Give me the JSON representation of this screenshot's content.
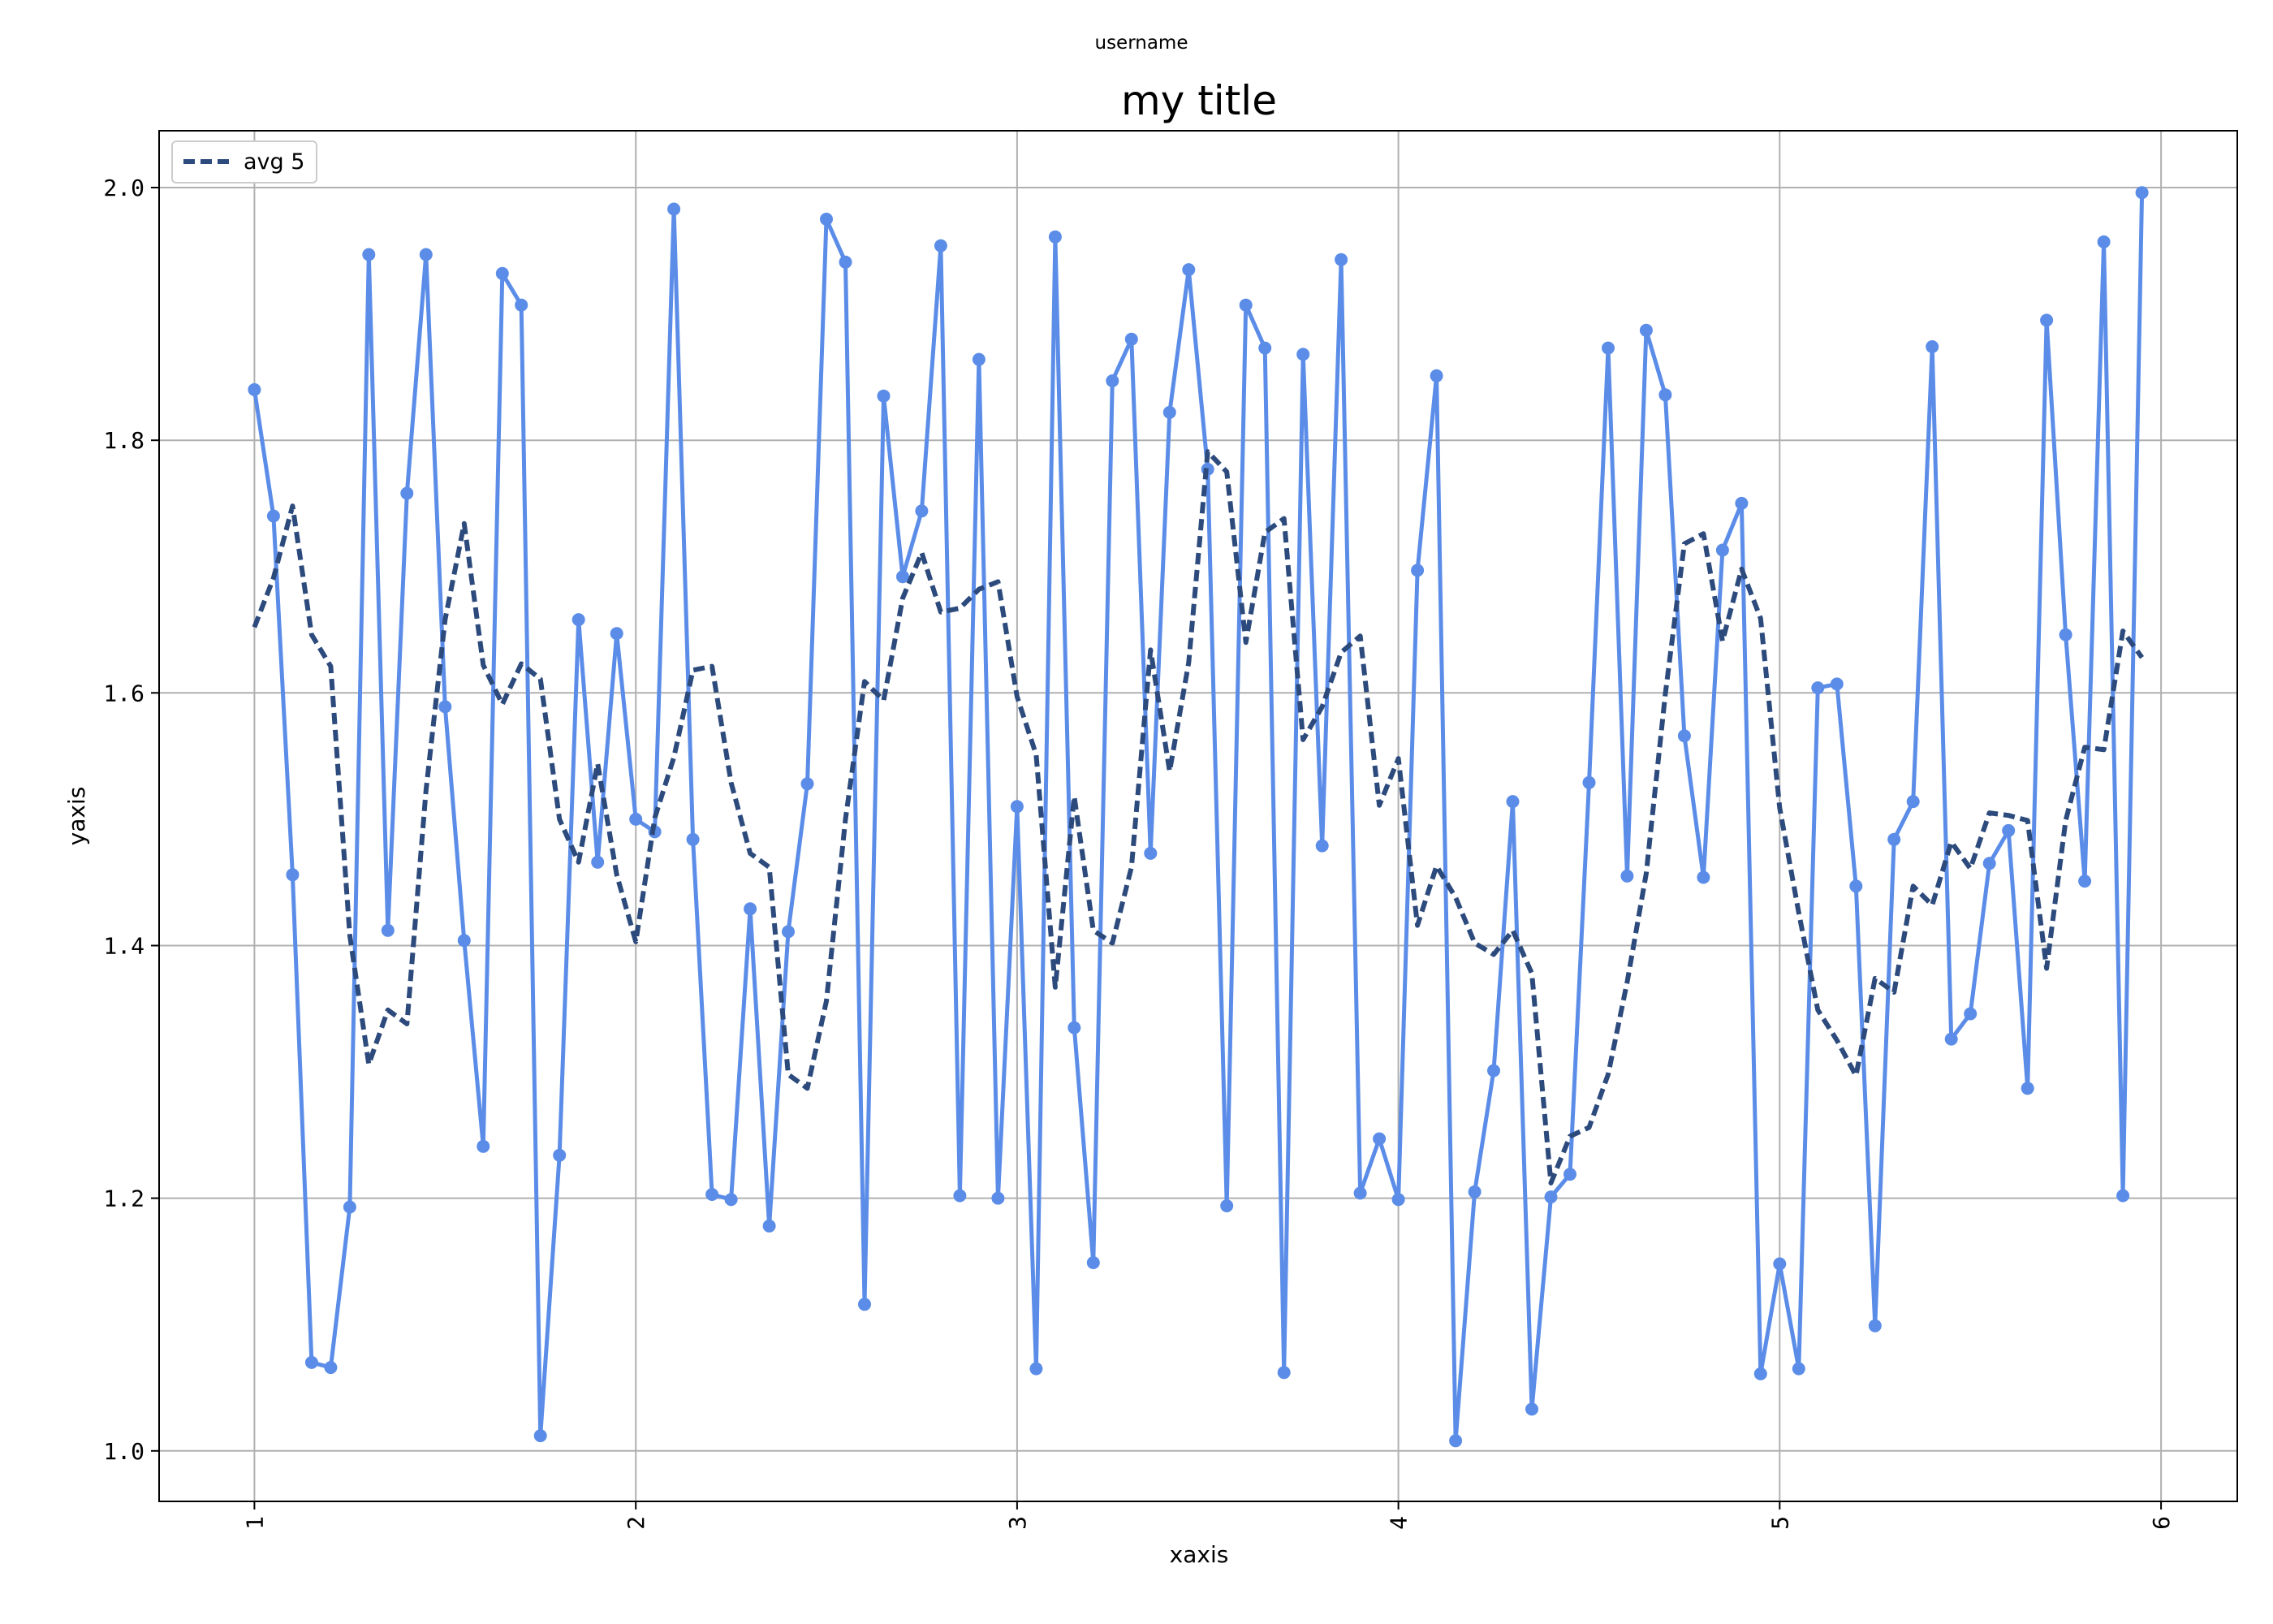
{
  "suptitle": "username",
  "chart_data": {
    "type": "line",
    "title": "my title",
    "xlabel": "xaxis",
    "ylabel": "yaxis",
    "xlim": [
      0.75,
      6.2
    ],
    "ylim": [
      0.96,
      2.045
    ],
    "xticks": [
      1,
      2,
      3,
      4,
      5,
      6
    ],
    "xtick_labels": [
      "1",
      "2",
      "3",
      "4",
      "5",
      "6"
    ],
    "yticks": [
      1.0,
      1.2,
      1.4,
      1.6,
      1.8,
      2.0
    ],
    "ytick_labels": [
      "1.0",
      "1.2",
      "1.4",
      "1.6",
      "1.8",
      "2.0"
    ],
    "grid": true,
    "legend_position": "top-left",
    "x": [
      1.0,
      1.05,
      1.1,
      1.15,
      1.2,
      1.25,
      1.3,
      1.35,
      1.4,
      1.45,
      1.5,
      1.55,
      1.6,
      1.65,
      1.7,
      1.75,
      1.8,
      1.85,
      1.9,
      1.95,
      2.0,
      2.05,
      2.1,
      2.15,
      2.2,
      2.25,
      2.3,
      2.35,
      2.4,
      2.45,
      2.5,
      2.55,
      2.6,
      2.65,
      2.7,
      2.75,
      2.8,
      2.85,
      2.9,
      2.95,
      3.0,
      3.05,
      3.1,
      3.15,
      3.2,
      3.25,
      3.3,
      3.35,
      3.4,
      3.45,
      3.5,
      3.55,
      3.6,
      3.65,
      3.7,
      3.75,
      3.8,
      3.85,
      3.9,
      3.95,
      4.0,
      4.05,
      4.1,
      4.15,
      4.2,
      4.25,
      4.3,
      4.35,
      4.4,
      4.45,
      4.5,
      4.55,
      4.6,
      4.65,
      4.7,
      4.75,
      4.8,
      4.85,
      4.9,
      4.95,
      5.0,
      5.05,
      5.1,
      5.15,
      5.2,
      5.25,
      5.3,
      5.35,
      5.4,
      5.45,
      5.5,
      5.55,
      5.6,
      5.65,
      5.7,
      5.75,
      5.8,
      5.85,
      5.9,
      5.95
    ],
    "series": [
      {
        "color": "#5b8de8",
        "style": "solid-with-markers",
        "values": [
          1.84,
          1.74,
          1.456,
          1.07,
          1.066,
          1.193,
          1.947,
          1.412,
          1.758,
          1.947,
          1.589,
          1.404,
          1.241,
          1.932,
          1.907,
          1.012,
          1.234,
          1.658,
          1.466,
          1.647,
          1.5,
          1.49,
          1.983,
          1.484,
          1.203,
          1.199,
          1.429,
          1.178,
          1.411,
          1.528,
          1.975,
          1.941,
          1.116,
          1.835,
          1.692,
          1.744,
          1.954,
          1.202,
          1.864,
          1.2,
          1.51,
          1.065,
          1.961,
          1.335,
          1.149,
          1.847,
          1.88,
          1.473,
          1.822,
          1.935,
          1.777,
          1.194,
          1.907,
          1.873,
          1.062,
          1.868,
          1.479,
          1.943,
          1.204,
          1.247,
          1.199,
          1.697,
          1.851,
          1.008,
          1.205,
          1.301,
          1.514,
          1.033,
          1.201,
          1.219,
          1.529,
          1.873,
          1.455,
          1.887,
          1.836,
          1.566,
          1.454,
          1.713,
          1.75,
          1.061,
          1.148,
          1.065,
          1.604,
          1.607,
          1.447,
          1.099,
          1.484,
          1.514,
          1.874,
          1.326,
          1.346,
          1.465,
          1.491,
          1.287,
          1.895,
          1.646,
          1.451,
          1.957,
          1.202,
          1.996
        ]
      },
      {
        "name": "avg 5",
        "color": "#2c4a7c",
        "style": "dashed",
        "values": [
          1.652,
          1.691,
          1.748,
          1.646,
          1.621,
          1.408,
          1.306,
          1.349,
          1.338,
          1.523,
          1.658,
          1.734,
          1.622,
          1.591,
          1.623,
          1.611,
          1.5,
          1.466,
          1.544,
          1.456,
          1.403,
          1.501,
          1.549,
          1.618,
          1.621,
          1.529,
          1.473,
          1.462,
          1.298,
          1.287,
          1.356,
          1.5,
          1.609,
          1.594,
          1.675,
          1.711,
          1.664,
          1.667,
          1.682,
          1.688,
          1.597,
          1.551,
          1.367,
          1.518,
          1.412,
          1.402,
          1.462,
          1.634,
          1.538,
          1.624,
          1.791,
          1.775,
          1.64,
          1.727,
          1.738,
          1.563,
          1.589,
          1.632,
          1.645,
          1.511,
          1.548,
          1.416,
          1.463,
          1.438,
          1.402,
          1.393,
          1.412,
          1.378,
          1.212,
          1.249,
          1.256,
          1.298,
          1.371,
          1.457,
          1.599,
          1.718,
          1.726,
          1.641,
          1.698,
          1.659,
          1.509,
          1.426,
          1.349,
          1.325,
          1.297,
          1.374,
          1.363,
          1.447,
          1.432,
          1.482,
          1.461,
          1.505,
          1.503,
          1.499,
          1.382,
          1.499,
          1.557,
          1.555,
          1.649,
          1.628
        ]
      }
    ]
  }
}
